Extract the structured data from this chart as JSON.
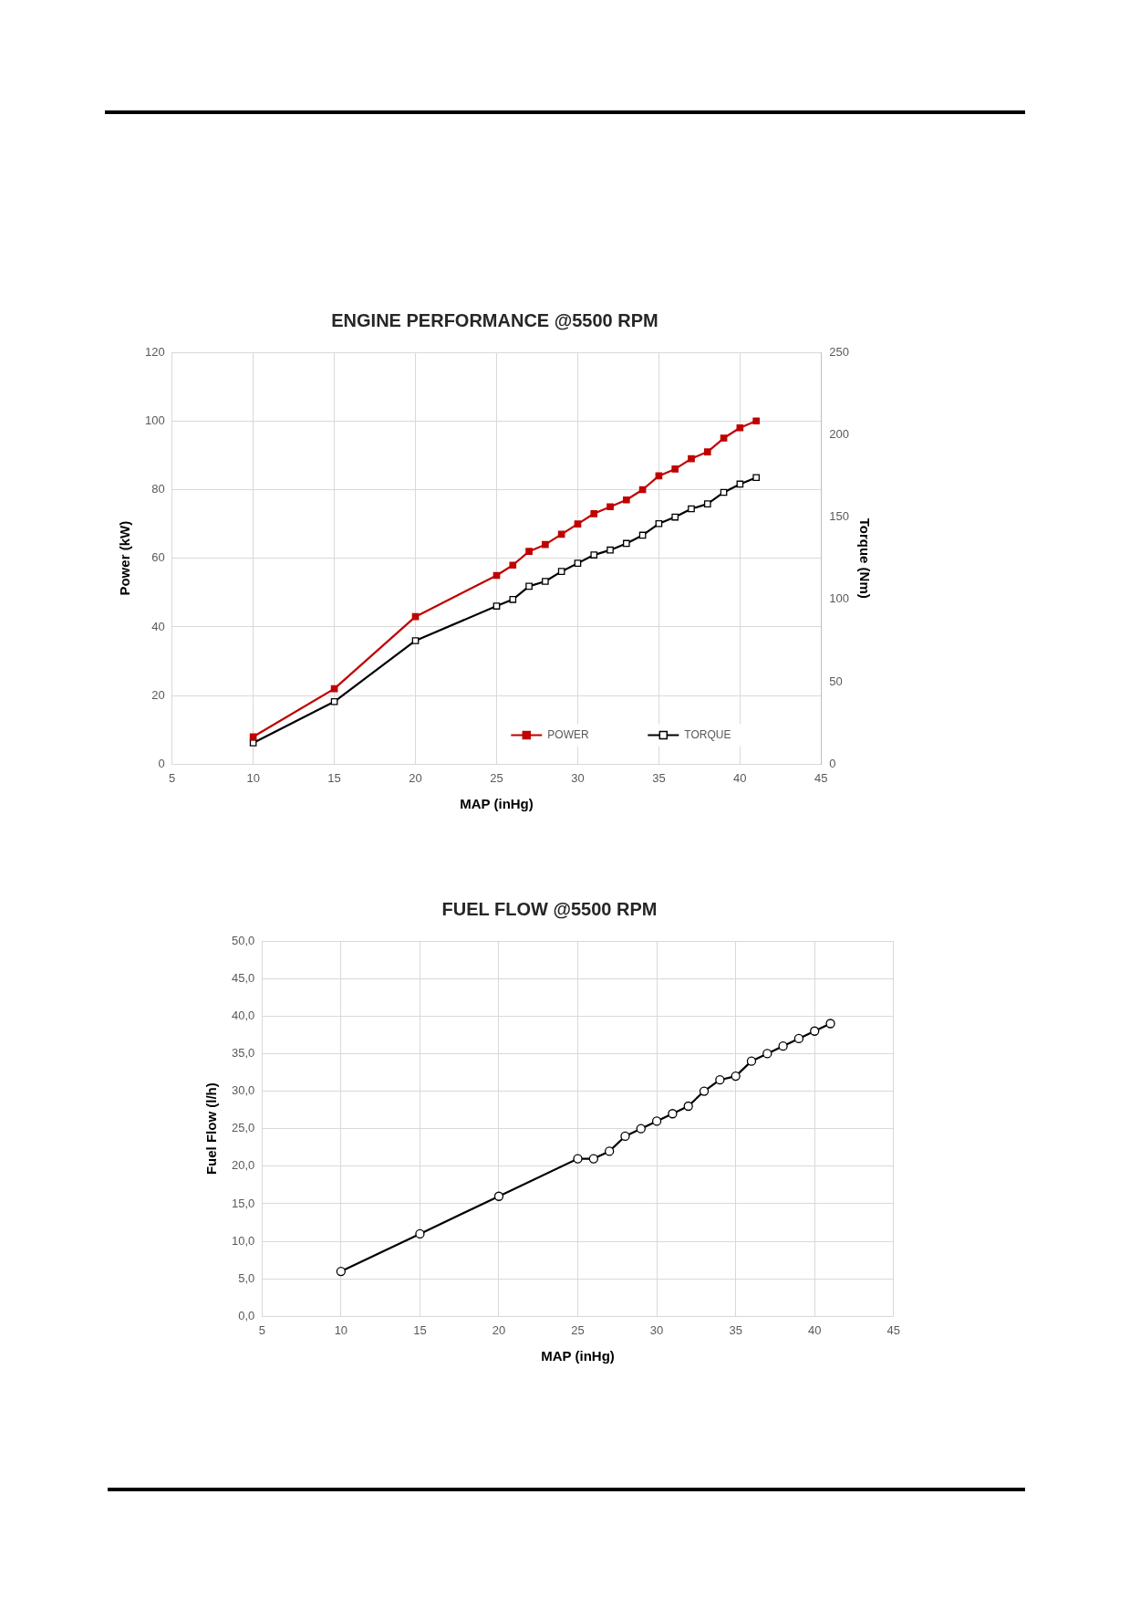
{
  "chart_data": [
    {
      "type": "line",
      "title": "ENGINE PERFORMANCE @5500 RPM",
      "xlabel": "MAP (inHg)",
      "ylabel": "Power (kW)",
      "y2label": "Torque (Nm)",
      "x": [
        10,
        15,
        20,
        25,
        26,
        27,
        28,
        29,
        30,
        31,
        32,
        33,
        34,
        35,
        36,
        37,
        38,
        39,
        40,
        41
      ],
      "series": [
        {
          "name": "POWER",
          "color": "#c00000",
          "marker": "square",
          "values": [
            8,
            22,
            43,
            55,
            58,
            62,
            64,
            67,
            70,
            73,
            75,
            77,
            80,
            84,
            86,
            89,
            91,
            95,
            98,
            100
          ]
        },
        {
          "name": "TORQUE",
          "color": "#000000",
          "marker": "square",
          "axis": "y2",
          "values": [
            13,
            38,
            75,
            96,
            100,
            108,
            111,
            117,
            122,
            127,
            130,
            134,
            139,
            146,
            150,
            155,
            158,
            165,
            170,
            174
          ]
        }
      ],
      "xlim": [
        5,
        45
      ],
      "xticks": [
        5,
        10,
        15,
        20,
        25,
        30,
        35,
        40,
        45
      ],
      "ylim": [
        0,
        120
      ],
      "yticks": [
        0,
        20,
        40,
        60,
        80,
        100,
        120
      ],
      "y2lim": [
        0,
        250
      ],
      "y2ticks": [
        0,
        50,
        100,
        150,
        200,
        250
      ],
      "grid": true,
      "legend": "bottom right",
      "line_style": "solid"
    },
    {
      "type": "line",
      "title": "FUEL FLOW @5500 RPM",
      "xlabel": "MAP (inHg)",
      "ylabel": "Fuel Flow (l/h)",
      "x": [
        10,
        15,
        20,
        25,
        26,
        27,
        28,
        29,
        30,
        31,
        32,
        33,
        34,
        35,
        36,
        37,
        38,
        39,
        40,
        41
      ],
      "series": [
        {
          "color": "#000000",
          "values": [
            6,
            11,
            16,
            21,
            21,
            22,
            24,
            25,
            26,
            27,
            28,
            30,
            31.5,
            32,
            34,
            35,
            36,
            37,
            38,
            39
          ]
        }
      ],
      "marker": "circle",
      "line_style": "solid",
      "xlim": [
        5,
        45
      ],
      "xticks": [
        5,
        10,
        15,
        20,
        25,
        30,
        35,
        40,
        45
      ],
      "ylim": [
        0,
        50
      ],
      "yticks": [
        {
          "value": 0,
          "label": "0,0"
        },
        {
          "value": 5,
          "label": "5,0"
        },
        {
          "value": 10,
          "label": "10,0"
        },
        {
          "value": 15,
          "label": "15,0"
        },
        {
          "value": 20,
          "label": "20,0"
        },
        {
          "value": 25,
          "label": "25,0"
        },
        {
          "value": 30,
          "label": "30,0"
        },
        {
          "value": 35,
          "label": "35,0"
        },
        {
          "value": 40,
          "label": "40,0"
        },
        {
          "value": 45,
          "label": "45,0"
        },
        {
          "value": 50,
          "label": "50,0"
        }
      ],
      "grid": true,
      "legend": false
    }
  ]
}
